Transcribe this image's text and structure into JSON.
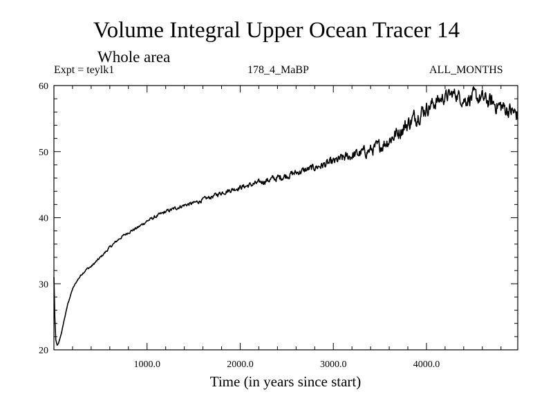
{
  "chart_data": {
    "type": "line",
    "title": "Volume Integral Upper Ocean Tracer 14",
    "subtitle": "Whole area",
    "experiment_label": "Expt = teylk1",
    "run_label": "178_4_MaBP",
    "period_label": "ALL_MONTHS",
    "xlabel": "Time (in years since start)",
    "ylabel": "",
    "xlim": [
      0,
      4980
    ],
    "ylim": [
      20,
      60
    ],
    "x_ticks": [
      1000,
      2000,
      3000,
      4000
    ],
    "x_tick_labels": [
      "1000.0",
      "2000.0",
      "3000.0",
      "4000.0"
    ],
    "y_ticks": [
      20,
      30,
      40,
      50,
      60
    ],
    "y_tick_labels": [
      "20",
      "30",
      "40",
      "50",
      "60"
    ],
    "series": [
      {
        "name": "Tracer 14",
        "color": "#000000",
        "x": [
          0,
          10,
          20,
          35,
          50,
          80,
          110,
          150,
          200,
          250,
          300,
          350,
          400,
          500,
          600,
          700,
          800,
          900,
          1000,
          1100,
          1200,
          1300,
          1400,
          1500,
          1600,
          1700,
          1800,
          1900,
          2000,
          2100,
          2200,
          2300,
          2400,
          2500,
          2600,
          2700,
          2800,
          2900,
          3000,
          3100,
          3200,
          3300,
          3400,
          3500,
          3600,
          3700,
          3800,
          3900,
          4000,
          4100,
          4200,
          4300,
          4350,
          4400,
          4500,
          4600,
          4700,
          4800,
          4900,
          4980
        ],
        "y": [
          31.0,
          25.0,
          21.5,
          20.7,
          21.0,
          22.5,
          24.5,
          27.0,
          29.2,
          30.5,
          31.5,
          32.2,
          32.6,
          34.0,
          35.5,
          36.8,
          37.8,
          38.5,
          39.5,
          40.2,
          40.9,
          41.4,
          41.9,
          42.2,
          42.7,
          43.2,
          43.8,
          44.2,
          44.6,
          44.9,
          45.3,
          45.7,
          46.0,
          46.4,
          46.8,
          47.2,
          47.6,
          48.0,
          48.4,
          49.0,
          49.4,
          49.8,
          50.2,
          50.8,
          51.8,
          53.0,
          54.2,
          55.5,
          56.6,
          57.5,
          58.3,
          58.8,
          58.4,
          57.8,
          58.3,
          58.0,
          57.4,
          56.8,
          56.2,
          55.5
        ],
        "noise_amplitude": [
          0,
          0,
          0,
          0,
          0,
          0,
          0.05,
          0.08,
          0.1,
          0.15,
          0.2,
          0.2,
          0.2,
          0.2,
          0.22,
          0.22,
          0.25,
          0.25,
          0.25,
          0.28,
          0.3,
          0.3,
          0.3,
          0.32,
          0.35,
          0.35,
          0.4,
          0.4,
          0.4,
          0.45,
          0.45,
          0.55,
          0.6,
          0.6,
          0.55,
          0.6,
          0.6,
          0.7,
          0.75,
          0.8,
          0.85,
          0.95,
          1.0,
          1.1,
          1.2,
          1.3,
          1.4,
          1.4,
          1.3,
          1.2,
          1.1,
          1.0,
          1.1,
          1.2,
          1.3,
          1.3,
          1.4,
          1.4,
          1.4,
          1.4
        ]
      }
    ]
  }
}
